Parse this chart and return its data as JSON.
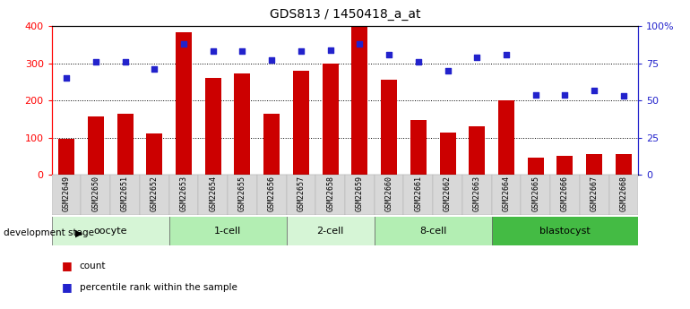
{
  "title": "GDS813 / 1450418_a_at",
  "samples": [
    "GSM22649",
    "GSM22650",
    "GSM22651",
    "GSM22652",
    "GSM22653",
    "GSM22654",
    "GSM22655",
    "GSM22656",
    "GSM22657",
    "GSM22658",
    "GSM22659",
    "GSM22660",
    "GSM22661",
    "GSM22662",
    "GSM22663",
    "GSM22664",
    "GSM22665",
    "GSM22666",
    "GSM22667",
    "GSM22668"
  ],
  "counts": [
    97,
    157,
    165,
    112,
    383,
    260,
    272,
    163,
    280,
    300,
    398,
    255,
    147,
    113,
    130,
    200,
    45,
    50,
    55,
    55
  ],
  "percentiles": [
    65,
    76,
    76,
    71,
    88,
    83,
    83,
    77,
    83,
    84,
    88,
    81,
    76,
    70,
    79,
    81,
    54,
    54,
    57,
    53
  ],
  "groups": [
    {
      "name": "oocyte",
      "start": 0,
      "end": 4
    },
    {
      "name": "1-cell",
      "start": 4,
      "end": 8
    },
    {
      "name": "2-cell",
      "start": 8,
      "end": 11
    },
    {
      "name": "8-cell",
      "start": 11,
      "end": 15
    },
    {
      "name": "blastocyst",
      "start": 15,
      "end": 20
    }
  ],
  "group_colors": [
    "#d6f5d6",
    "#b3eeb3",
    "#d6f5d6",
    "#b3eeb3",
    "#44bb44"
  ],
  "bar_color": "#cc0000",
  "dot_color": "#2222cc",
  "ylim_left": [
    0,
    400
  ],
  "ylim_right": [
    0,
    100
  ],
  "yticks_left": [
    0,
    100,
    200,
    300,
    400
  ],
  "yticks_right": [
    0,
    25,
    50,
    75,
    100
  ],
  "ytick_right_labels": [
    "0",
    "25",
    "50",
    "75",
    "100%"
  ],
  "grid_lines": [
    100,
    200,
    300
  ],
  "background_color": "#ffffff"
}
